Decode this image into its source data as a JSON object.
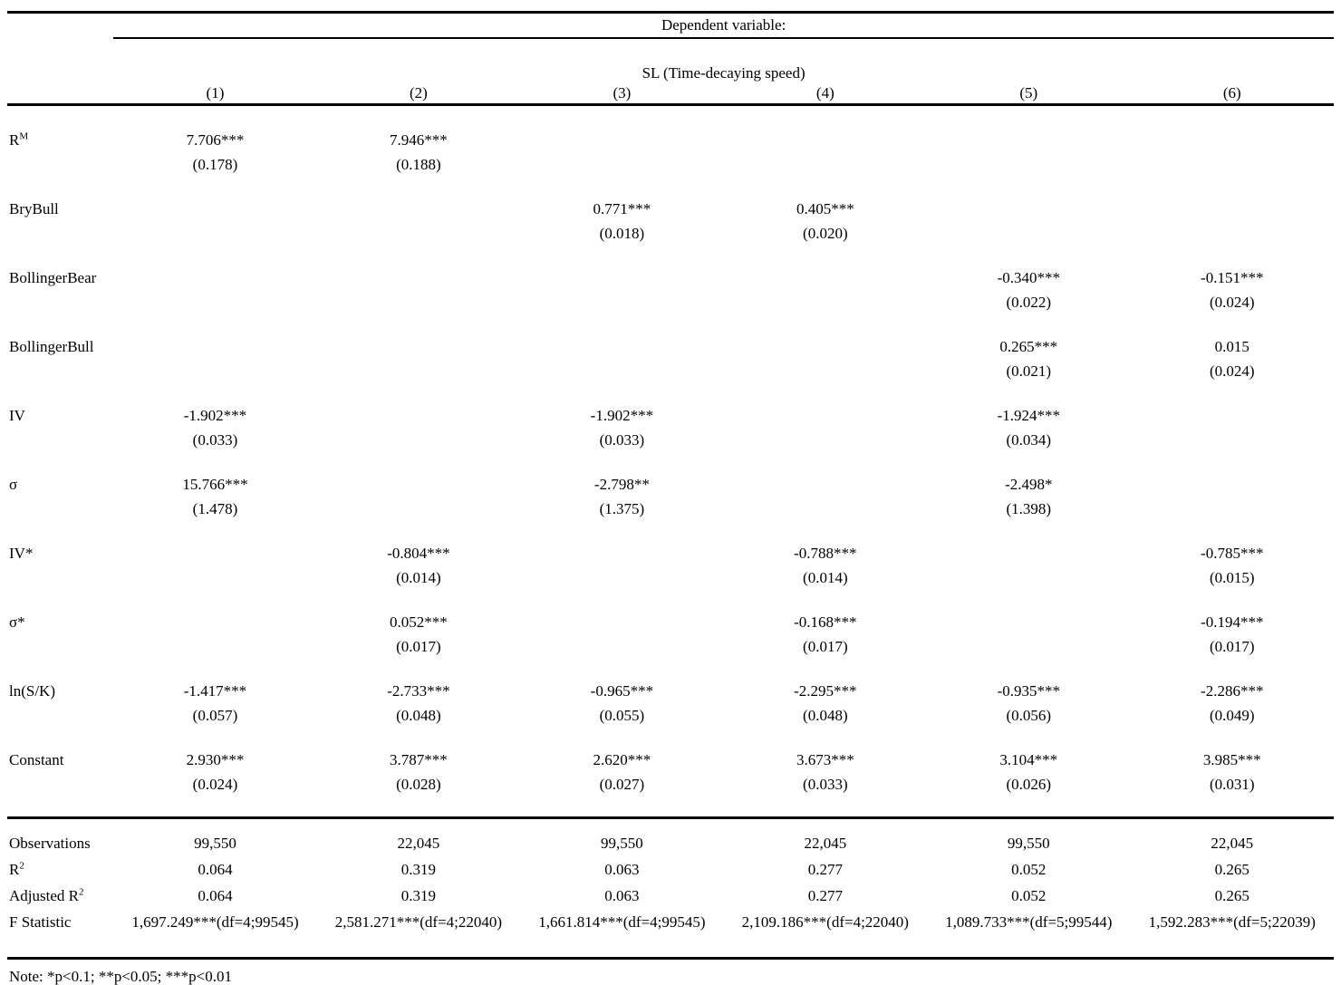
{
  "table": {
    "header": {
      "dependent_variable_label": "Dependent variable:",
      "dependent_variable_name": "SL (Time-decaying speed)",
      "column_numbers": [
        "(1)",
        "(2)",
        "(3)",
        "(4)",
        "(5)",
        "(6)"
      ]
    },
    "variables": [
      {
        "label": "R",
        "label_sup": "M",
        "coefs": [
          "7.706***",
          "7.946***",
          "",
          "",
          "",
          ""
        ],
        "ses": [
          "(0.178)",
          "(0.188)",
          "",
          "",
          "",
          ""
        ]
      },
      {
        "label": "BryBull",
        "coefs": [
          "",
          "",
          "0.771***",
          "0.405***",
          "",
          ""
        ],
        "ses": [
          "",
          "",
          "(0.018)",
          "(0.020)",
          "",
          ""
        ]
      },
      {
        "label": "BollingerBear",
        "coefs": [
          "",
          "",
          "",
          "",
          "-0.340***",
          "-0.151***"
        ],
        "ses": [
          "",
          "",
          "",
          "",
          "(0.022)",
          "(0.024)"
        ]
      },
      {
        "label": "BollingerBull",
        "coefs": [
          "",
          "",
          "",
          "",
          "0.265***",
          "0.015"
        ],
        "ses": [
          "",
          "",
          "",
          "",
          "(0.021)",
          "(0.024)"
        ]
      },
      {
        "label": "IV",
        "coefs": [
          "-1.902***",
          "",
          "-1.902***",
          "",
          "-1.924***",
          ""
        ],
        "ses": [
          "(0.033)",
          "",
          "(0.033)",
          "",
          "(0.034)",
          ""
        ]
      },
      {
        "label": "σ",
        "coefs": [
          "15.766***",
          "",
          "-2.798**",
          "",
          "-2.498*",
          ""
        ],
        "ses": [
          "(1.478)",
          "",
          "(1.375)",
          "",
          "(1.398)",
          ""
        ]
      },
      {
        "label": "IV*",
        "coefs": [
          "",
          "-0.804***",
          "",
          "-0.788***",
          "",
          "-0.785***"
        ],
        "ses": [
          "",
          "(0.014)",
          "",
          "(0.014)",
          "",
          "(0.015)"
        ]
      },
      {
        "label": "σ*",
        "coefs": [
          "",
          "0.052***",
          "",
          "-0.168***",
          "",
          "-0.194***"
        ],
        "ses": [
          "",
          "(0.017)",
          "",
          "(0.017)",
          "",
          "(0.017)"
        ]
      },
      {
        "label": "ln(S/K)",
        "coefs": [
          "-1.417***",
          "-2.733***",
          "-0.965***",
          "-2.295***",
          "-0.935***",
          "-2.286***"
        ],
        "ses": [
          "(0.057)",
          "(0.048)",
          "(0.055)",
          "(0.048)",
          "(0.056)",
          "(0.049)"
        ]
      },
      {
        "label": "Constant",
        "coefs": [
          "2.930***",
          "3.787***",
          "2.620***",
          "3.673***",
          "3.104***",
          "3.985***"
        ],
        "ses": [
          "(0.024)",
          "(0.028)",
          "(0.027)",
          "(0.033)",
          "(0.026)",
          "(0.031)"
        ]
      }
    ],
    "stats": [
      {
        "label": "Observations",
        "values": [
          "99,550",
          "22,045",
          "99,550",
          "22,045",
          "99,550",
          "22,045"
        ]
      },
      {
        "label": "R",
        "label_sup": "2",
        "values": [
          "0.064",
          "0.319",
          "0.063",
          "0.277",
          "0.052",
          "0.265"
        ]
      },
      {
        "label": "Adjusted R",
        "label_sup": "2",
        "values": [
          "0.064",
          "0.319",
          "0.063",
          "0.277",
          "0.052",
          "0.265"
        ]
      },
      {
        "label": "F Statistic",
        "values": [
          "1,697.249***(df=4;99545)",
          "2,581.271***(df=4;22040)",
          "1,661.814***(df=4;99545)",
          "2,109.186***(df=4;22040)",
          "1,089.733***(df=5;99544)",
          "1,592.283***(df=5;22039)"
        ]
      }
    ],
    "note": "Note: *p<0.1; **p<0.05; ***p<0.01"
  }
}
